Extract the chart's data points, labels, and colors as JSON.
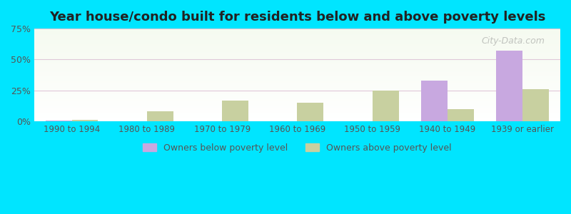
{
  "title": "Year house/condo built for residents below and above poverty levels",
  "categories": [
    "1990 to 1994",
    "1980 to 1989",
    "1970 to 1979",
    "1960 to 1969",
    "1950 to 1959",
    "1940 to 1949",
    "1939 or earlier"
  ],
  "below_poverty": [
    0.5,
    0.0,
    0.0,
    0.0,
    0.0,
    33.0,
    57.0
  ],
  "above_poverty": [
    1.0,
    8.0,
    17.0,
    15.0,
    25.0,
    10.0,
    26.0
  ],
  "below_color": "#c8a8e0",
  "above_color": "#c8d0a0",
  "ylim": [
    0,
    75
  ],
  "yticks": [
    0,
    25,
    50,
    75
  ],
  "ytick_labels": [
    "0%",
    "25%",
    "50%",
    "75%"
  ],
  "legend_below": "Owners below poverty level",
  "legend_above": "Owners above poverty level",
  "outer_bg": "#00e5ff",
  "title_color": "#222222",
  "grid_color": "#e0c8d8",
  "watermark": "City-Data.com"
}
